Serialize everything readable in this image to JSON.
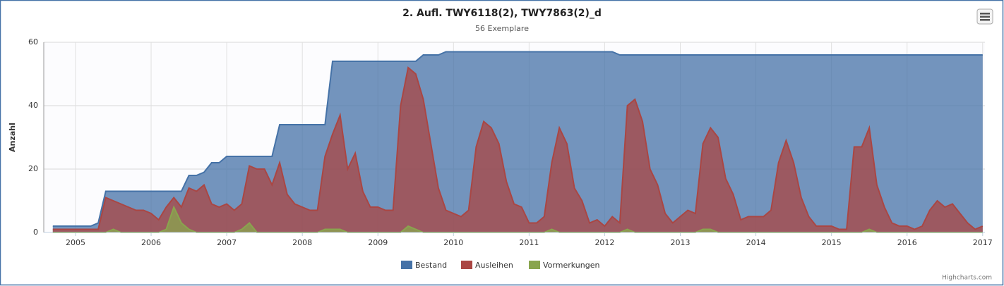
{
  "chart_data": {
    "type": "area",
    "title": "2. Aufl. TWY6118(2), TWY7863(2)_d",
    "subtitle": "56 Exemplare",
    "y_label": "Anzahl",
    "credits": "Highcharts.com",
    "x": [
      2004.7,
      2004.8,
      2004.9,
      2005.0,
      2005.1,
      2005.2,
      2005.3,
      2005.4,
      2005.5,
      2005.6,
      2005.7,
      2005.8,
      2005.9,
      2006.0,
      2006.1,
      2006.2,
      2006.3,
      2006.4,
      2006.5,
      2006.6,
      2006.7,
      2006.8,
      2006.9,
      2007.0,
      2007.1,
      2007.2,
      2007.3,
      2007.4,
      2007.5,
      2007.6,
      2007.7,
      2007.8,
      2007.9,
      2008.0,
      2008.1,
      2008.2,
      2008.3,
      2008.4,
      2008.5,
      2008.6,
      2008.7,
      2008.8,
      2008.9,
      2009.0,
      2009.1,
      2009.2,
      2009.3,
      2009.4,
      2009.5,
      2009.6,
      2009.7,
      2009.8,
      2009.9,
      2010.0,
      2010.1,
      2010.2,
      2010.3,
      2010.4,
      2010.5,
      2010.6,
      2010.7,
      2010.8,
      2010.9,
      2011.0,
      2011.1,
      2011.2,
      2011.3,
      2011.4,
      2011.5,
      2011.6,
      2011.7,
      2011.8,
      2011.9,
      2012.0,
      2012.1,
      2012.2,
      2012.3,
      2012.4,
      2012.5,
      2012.6,
      2012.7,
      2012.8,
      2012.9,
      2013.0,
      2013.1,
      2013.2,
      2013.3,
      2013.4,
      2013.5,
      2013.6,
      2013.7,
      2013.8,
      2013.9,
      2014.0,
      2014.1,
      2014.2,
      2014.3,
      2014.4,
      2014.5,
      2014.6,
      2014.7,
      2014.8,
      2014.9,
      2015.0,
      2015.1,
      2015.2,
      2015.3,
      2015.4,
      2015.5,
      2015.6,
      2015.7,
      2015.8,
      2015.9,
      2016.0,
      2016.1,
      2016.2,
      2016.3,
      2016.4,
      2016.5,
      2016.6,
      2016.7,
      2016.8,
      2016.9,
      2017.0
    ],
    "series": [
      {
        "name": "Bestand",
        "color": "#4572a7",
        "values": [
          2,
          2,
          2,
          2,
          2,
          2,
          3,
          13,
          13,
          13,
          13,
          13,
          13,
          13,
          13,
          13,
          13,
          13,
          18,
          18,
          19,
          22,
          22,
          24,
          24,
          24,
          24,
          24,
          24,
          24,
          34,
          34,
          34,
          34,
          34,
          34,
          34,
          54,
          54,
          54,
          54,
          54,
          54,
          54,
          54,
          54,
          54,
          54,
          54,
          56,
          56,
          56,
          57,
          57,
          57,
          57,
          57,
          57,
          57,
          57,
          57,
          57,
          57,
          57,
          57,
          57,
          57,
          57,
          57,
          57,
          57,
          57,
          57,
          57,
          57,
          56,
          56,
          56,
          56,
          56,
          56,
          56,
          56,
          56,
          56,
          56,
          56,
          56,
          56,
          56,
          56,
          56,
          56,
          56,
          56,
          56,
          56,
          56,
          56,
          56,
          56,
          56,
          56,
          56,
          56,
          56,
          56,
          56,
          56,
          56,
          56,
          56,
          56,
          56,
          56,
          56,
          56,
          56,
          56,
          56,
          56,
          56,
          56,
          56
        ]
      },
      {
        "name": "Ausleihen",
        "color": "#aa4643",
        "values": [
          1,
          1,
          1,
          1,
          1,
          1,
          1,
          11,
          10,
          9,
          8,
          7,
          7,
          6,
          4,
          8,
          11,
          8,
          14,
          13,
          15,
          9,
          8,
          9,
          7,
          9,
          21,
          20,
          20,
          15,
          22,
          12,
          9,
          8,
          7,
          7,
          24,
          31,
          37,
          20,
          25,
          13,
          8,
          8,
          7,
          7,
          40,
          52,
          50,
          42,
          28,
          14,
          7,
          6,
          5,
          7,
          27,
          35,
          33,
          28,
          16,
          9,
          8,
          3,
          3,
          5,
          22,
          33,
          28,
          14,
          10,
          3,
          4,
          2,
          5,
          3,
          40,
          42,
          35,
          20,
          15,
          6,
          3,
          5,
          7,
          6,
          28,
          33,
          30,
          17,
          12,
          4,
          5,
          5,
          5,
          7,
          22,
          29,
          22,
          11,
          5,
          2,
          2,
          2,
          1,
          1,
          27,
          27,
          33,
          15,
          8,
          3,
          2,
          2,
          1,
          2,
          7,
          10,
          8,
          9,
          6,
          3,
          1,
          2
        ]
      },
      {
        "name": "Vormerkungen",
        "color": "#89a54e",
        "values": [
          0,
          0,
          0,
          0,
          0,
          0,
          0,
          0,
          1,
          0,
          0,
          0,
          0,
          0,
          0,
          1,
          8,
          3,
          1,
          0,
          0,
          0,
          0,
          0,
          0,
          1,
          3,
          0,
          0,
          0,
          0,
          0,
          0,
          0,
          0,
          0,
          1,
          1,
          1,
          0,
          0,
          0,
          0,
          0,
          0,
          0,
          0,
          2,
          1,
          0,
          0,
          0,
          0,
          0,
          0,
          0,
          0,
          0,
          0,
          0,
          0,
          0,
          0,
          0,
          0,
          0,
          1,
          0,
          0,
          0,
          0,
          0,
          0,
          0,
          0,
          0,
          1,
          0,
          0,
          0,
          0,
          0,
          0,
          0,
          0,
          0,
          1,
          1,
          0,
          0,
          0,
          0,
          0,
          0,
          0,
          0,
          0,
          0,
          0,
          0,
          0,
          0,
          0,
          0,
          0,
          0,
          0,
          0,
          1,
          0,
          0,
          0,
          0,
          0,
          0,
          0,
          0,
          0,
          0,
          0,
          0,
          0,
          0,
          0
        ]
      }
    ],
    "xlim": [
      2004.58,
      2017.03
    ],
    "xticks": [
      2005,
      2006,
      2007,
      2008,
      2009,
      2010,
      2011,
      2012,
      2013,
      2014,
      2015,
      2016,
      2017
    ],
    "ylim": [
      0,
      60
    ],
    "yticks": [
      0,
      20,
      40,
      60
    ],
    "grid": true,
    "legend": "bottom"
  }
}
